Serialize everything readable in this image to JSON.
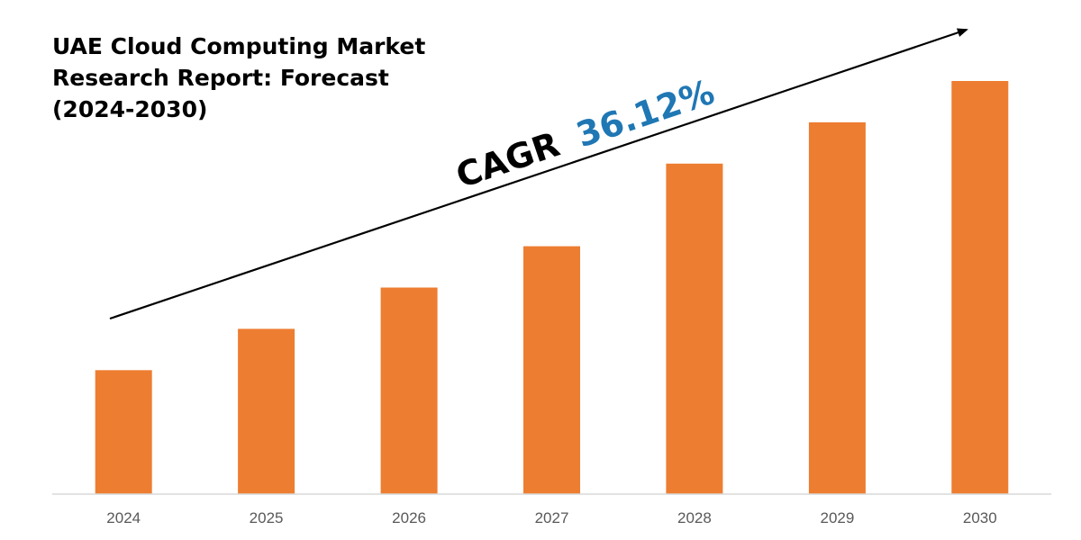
{
  "chart_data": {
    "type": "bar",
    "title": "UAE Cloud Computing Market\nResearch Report: Forecast\n(2024-2030)",
    "categories": [
      "2024",
      "2025",
      "2026",
      "2027",
      "2028",
      "2029",
      "2030"
    ],
    "values": [
      30,
      40,
      50,
      60,
      80,
      90,
      100
    ],
    "ylim": [
      0,
      100
    ],
    "grid": false,
    "xlabel": "",
    "ylabel": "",
    "annotation": {
      "label": "CAGR",
      "value": "36.12%"
    },
    "colors": {
      "bar": "#ED7D31",
      "annotation_label": "#000000",
      "annotation_value": "#1F77B4",
      "axis": "#D9D9D9",
      "arrow": "#000000"
    }
  }
}
